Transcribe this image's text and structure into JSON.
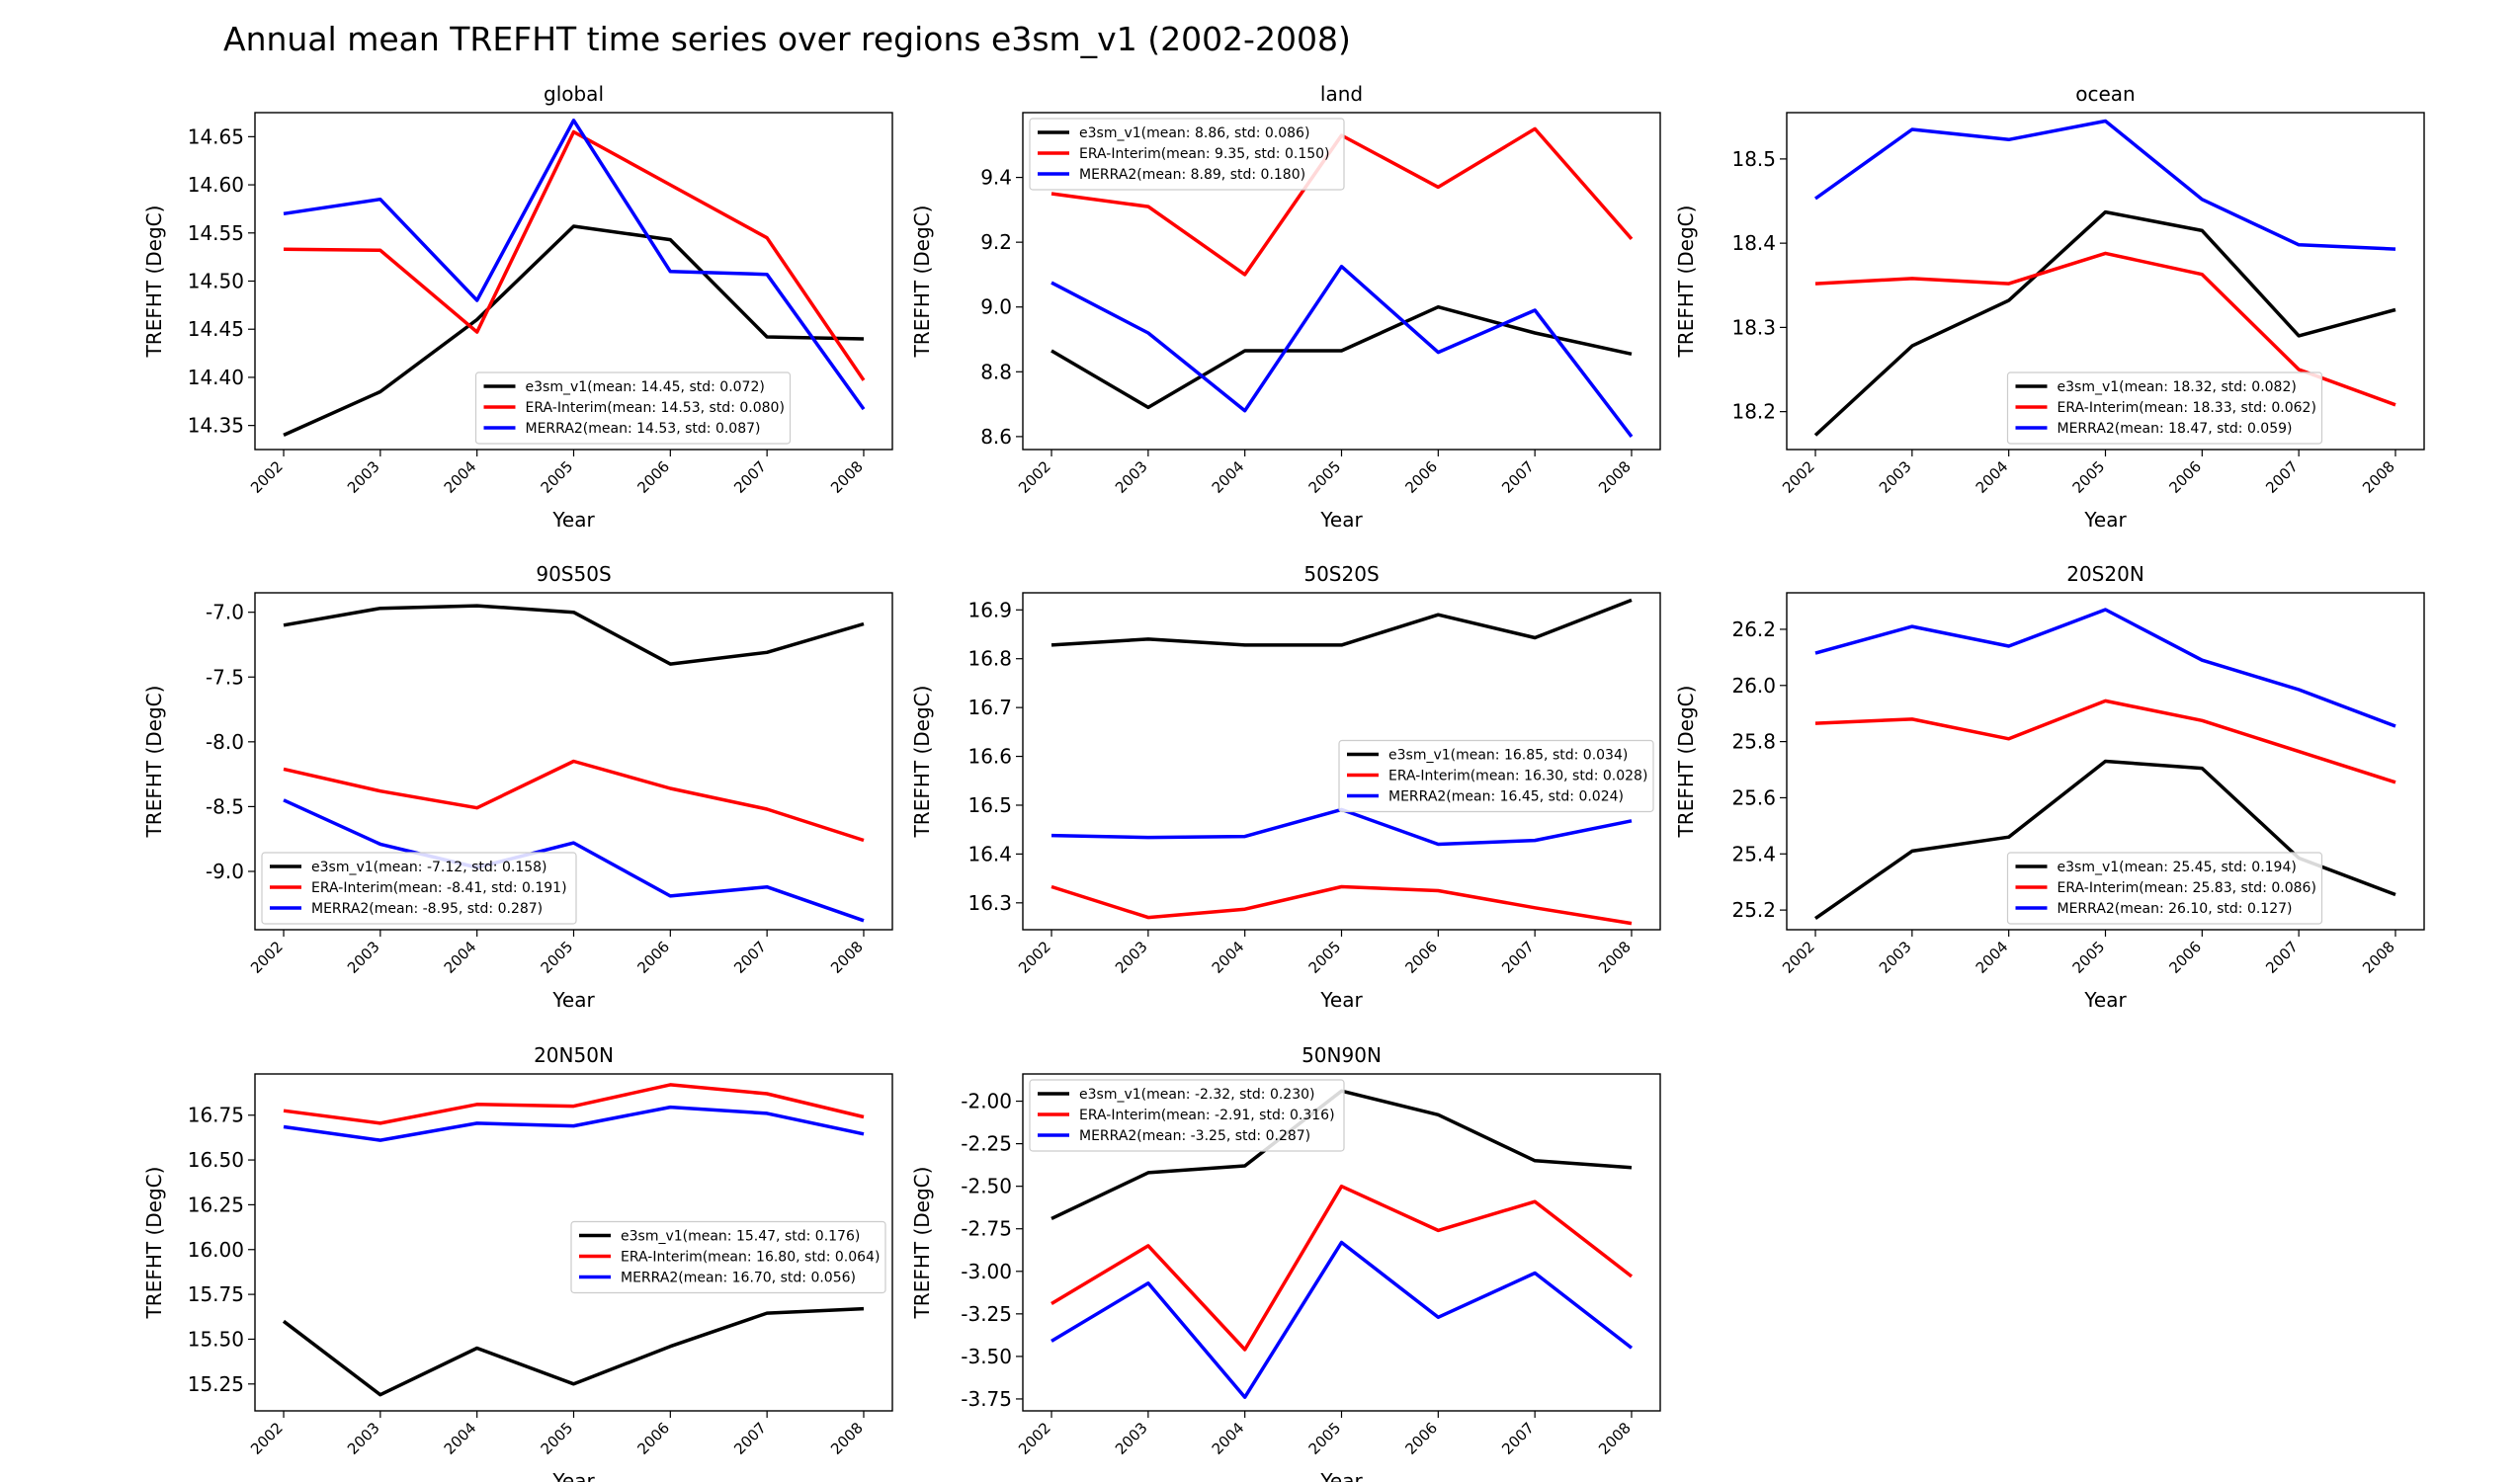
{
  "figure_title": "Annual mean TREFHT time series over regions e3sm_v1 (2002-2008)",
  "colors": {
    "e3sm_v1": "#000000",
    "ERA-Interim": "#ff0000",
    "MERRA2": "#0000ff"
  },
  "chart_data": [
    {
      "type": "line",
      "title": "global",
      "xlabel": "Year",
      "ylabel": "TREFHT (DegC)",
      "categories": [
        "2002",
        "2003",
        "2004",
        "2005",
        "2006",
        "2007",
        "2008"
      ],
      "ylim": [
        14.325,
        14.675
      ],
      "yticks": [
        "14.35",
        "14.40",
        "14.45",
        "14.50",
        "14.55",
        "14.60",
        "14.65"
      ],
      "legend_position": "lower-center",
      "series": [
        {
          "name": "e3sm_v1",
          "label": "e3sm_v1(mean: 14.45, std: 0.072)",
          "values": [
            14.34,
            14.385,
            14.46,
            14.557,
            14.543,
            14.442,
            14.44
          ]
        },
        {
          "name": "ERA-Interim",
          "label": "ERA-Interim(mean: 14.53, std: 0.080)",
          "values": [
            14.533,
            14.532,
            14.447,
            14.655,
            14.6,
            14.545,
            14.397
          ]
        },
        {
          "name": "MERRA2",
          "label": "MERRA2(mean: 14.53, std: 0.087)",
          "values": [
            14.57,
            14.585,
            14.48,
            14.667,
            14.51,
            14.507,
            14.367
          ]
        }
      ]
    },
    {
      "type": "line",
      "title": "land",
      "xlabel": "Year",
      "ylabel": "TREFHT (DegC)",
      "categories": [
        "2002",
        "2003",
        "2004",
        "2005",
        "2006",
        "2007",
        "2008"
      ],
      "ylim": [
        8.56,
        9.6
      ],
      "yticks": [
        "8.6",
        "8.8",
        "9.0",
        "9.2",
        "9.4"
      ],
      "legend_position": "upper-left",
      "series": [
        {
          "name": "e3sm_v1",
          "label": "e3sm_v1(mean: 8.86, std: 0.086)",
          "values": [
            8.865,
            8.69,
            8.865,
            8.865,
            9.0,
            8.92,
            8.855
          ]
        },
        {
          "name": "ERA-Interim",
          "label": "ERA-Interim(mean: 9.35, std: 0.150)",
          "values": [
            9.35,
            9.31,
            9.1,
            9.53,
            9.37,
            9.55,
            9.21
          ]
        },
        {
          "name": "MERRA2",
          "label": "MERRA2(mean: 8.89, std: 0.180)",
          "values": [
            9.075,
            8.92,
            8.68,
            9.125,
            8.86,
            8.99,
            8.6
          ]
        }
      ]
    },
    {
      "type": "line",
      "title": "ocean",
      "xlabel": "Year",
      "ylabel": "TREFHT (DegC)",
      "categories": [
        "2002",
        "2003",
        "2004",
        "2005",
        "2006",
        "2007",
        "2008"
      ],
      "ylim": [
        18.155,
        18.555
      ],
      "yticks": [
        "18.2",
        "18.3",
        "18.4",
        "18.5"
      ],
      "legend_position": "lower-center",
      "series": [
        {
          "name": "e3sm_v1",
          "label": "e3sm_v1(mean: 18.32, std: 0.082)",
          "values": [
            18.172,
            18.278,
            18.332,
            18.437,
            18.415,
            18.29,
            18.321
          ]
        },
        {
          "name": "ERA-Interim",
          "label": "ERA-Interim(mean: 18.33, std: 0.062)",
          "values": [
            18.352,
            18.358,
            18.352,
            18.388,
            18.363,
            18.25,
            18.208
          ]
        },
        {
          "name": "MERRA2",
          "label": "MERRA2(mean: 18.47, std: 0.059)",
          "values": [
            18.453,
            18.535,
            18.523,
            18.545,
            18.452,
            18.398,
            18.393
          ]
        }
      ]
    },
    {
      "type": "line",
      "title": "90S50S",
      "xlabel": "Year",
      "ylabel": "TREFHT (DegC)",
      "categories": [
        "2002",
        "2003",
        "2004",
        "2005",
        "2006",
        "2007",
        "2008"
      ],
      "ylim": [
        -9.45,
        -6.85
      ],
      "yticks": [
        "-7.0",
        "-7.5",
        "-8.0",
        "-8.5",
        "-9.0"
      ],
      "legend_position": "lower-left",
      "series": [
        {
          "name": "e3sm_v1",
          "label": "e3sm_v1(mean: -7.12, std: 0.158)",
          "values": [
            -7.1,
            -6.97,
            -6.95,
            -7.0,
            -7.4,
            -7.31,
            -7.09
          ]
        },
        {
          "name": "ERA-Interim",
          "label": "ERA-Interim(mean: -8.41, std: 0.191)",
          "values": [
            -8.21,
            -8.38,
            -8.51,
            -8.15,
            -8.36,
            -8.52,
            -8.76
          ]
        },
        {
          "name": "MERRA2",
          "label": "MERRA2(mean: -8.95, std: 0.287)",
          "values": [
            -8.45,
            -8.79,
            -8.97,
            -8.78,
            -9.19,
            -9.12,
            -9.38
          ]
        }
      ]
    },
    {
      "type": "line",
      "title": "50S20S",
      "xlabel": "Year",
      "ylabel": "TREFHT (DegC)",
      "categories": [
        "2002",
        "2003",
        "2004",
        "2005",
        "2006",
        "2007",
        "2008"
      ],
      "ylim": [
        16.245,
        16.935
      ],
      "yticks": [
        "16.3",
        "16.4",
        "16.5",
        "16.6",
        "16.7",
        "16.8",
        "16.9"
      ],
      "legend_position": "center-right",
      "series": [
        {
          "name": "e3sm_v1",
          "label": "e3sm_v1(mean: 16.85, std: 0.034)",
          "values": [
            16.828,
            16.84,
            16.828,
            16.828,
            16.89,
            16.843,
            16.92
          ]
        },
        {
          "name": "ERA-Interim",
          "label": "ERA-Interim(mean: 16.30, std: 0.028)",
          "values": [
            16.333,
            16.27,
            16.287,
            16.333,
            16.325,
            16.29,
            16.258
          ]
        },
        {
          "name": "MERRA2",
          "label": "MERRA2(mean: 16.45, std: 0.024)",
          "values": [
            16.438,
            16.434,
            16.436,
            16.491,
            16.42,
            16.428,
            16.468
          ]
        }
      ]
    },
    {
      "type": "line",
      "title": "20S20N",
      "xlabel": "Year",
      "ylabel": "TREFHT (DegC)",
      "categories": [
        "2002",
        "2003",
        "2004",
        "2005",
        "2006",
        "2007",
        "2008"
      ],
      "ylim": [
        25.13,
        26.33
      ],
      "yticks": [
        "25.2",
        "25.4",
        "25.6",
        "25.8",
        "26.0",
        "26.2"
      ],
      "legend_position": "lower-center",
      "series": [
        {
          "name": "e3sm_v1",
          "label": "e3sm_v1(mean: 25.45, std: 0.194)",
          "values": [
            25.17,
            25.41,
            25.46,
            25.73,
            25.705,
            25.385,
            25.255
          ]
        },
        {
          "name": "ERA-Interim",
          "label": "ERA-Interim(mean: 25.83, std: 0.086)",
          "values": [
            25.865,
            25.88,
            25.81,
            25.945,
            25.875,
            25.765,
            25.655
          ]
        },
        {
          "name": "MERRA2",
          "label": "MERRA2(mean: 26.10, std: 0.127)",
          "values": [
            26.115,
            26.21,
            26.14,
            26.27,
            26.09,
            25.985,
            25.855
          ]
        }
      ]
    },
    {
      "type": "line",
      "title": "20N50N",
      "xlabel": "Year",
      "ylabel": "TREFHT (DegC)",
      "categories": [
        "2002",
        "2003",
        "2004",
        "2005",
        "2006",
        "2007",
        "2008"
      ],
      "ylim": [
        15.1,
        16.98
      ],
      "yticks": [
        "15.25",
        "15.50",
        "15.75",
        "16.00",
        "16.25",
        "16.50",
        "16.75"
      ],
      "legend_position": "center-right",
      "series": [
        {
          "name": "e3sm_v1",
          "label": "e3sm_v1(mean: 15.47, std: 0.176)",
          "values": [
            15.6,
            15.19,
            15.45,
            15.25,
            15.46,
            15.645,
            15.67
          ]
        },
        {
          "name": "ERA-Interim",
          "label": "ERA-Interim(mean: 16.80, std: 0.064)",
          "values": [
            16.775,
            16.705,
            16.81,
            16.8,
            16.92,
            16.87,
            16.74
          ]
        },
        {
          "name": "MERRA2",
          "label": "MERRA2(mean: 16.70, std: 0.056)",
          "values": [
            16.685,
            16.61,
            16.705,
            16.69,
            16.795,
            16.76,
            16.645
          ]
        }
      ]
    },
    {
      "type": "line",
      "title": "50N90N",
      "xlabel": "Year",
      "ylabel": "TREFHT (DegC)",
      "categories": [
        "2002",
        "2003",
        "2004",
        "2005",
        "2006",
        "2007",
        "2008"
      ],
      "ylim": [
        -3.82,
        -1.84
      ],
      "yticks": [
        "-2.00",
        "-2.25",
        "-2.50",
        "-2.75",
        "-3.00",
        "-3.25",
        "-3.50",
        "-3.75"
      ],
      "legend_position": "upper-left",
      "series": [
        {
          "name": "e3sm_v1",
          "label": "e3sm_v1(mean: -2.32, std: 0.230)",
          "values": [
            -2.69,
            -2.42,
            -2.38,
            -1.94,
            -2.08,
            -2.35,
            -2.39
          ]
        },
        {
          "name": "ERA-Interim",
          "label": "ERA-Interim(mean: -2.91, std: 0.316)",
          "values": [
            -3.19,
            -2.85,
            -3.46,
            -2.5,
            -2.76,
            -2.59,
            -3.03
          ]
        },
        {
          "name": "MERRA2",
          "label": "MERRA2(mean: -3.25, std: 0.287)",
          "values": [
            -3.41,
            -3.07,
            -3.74,
            -2.83,
            -3.27,
            -3.01,
            -3.45
          ]
        }
      ]
    }
  ]
}
